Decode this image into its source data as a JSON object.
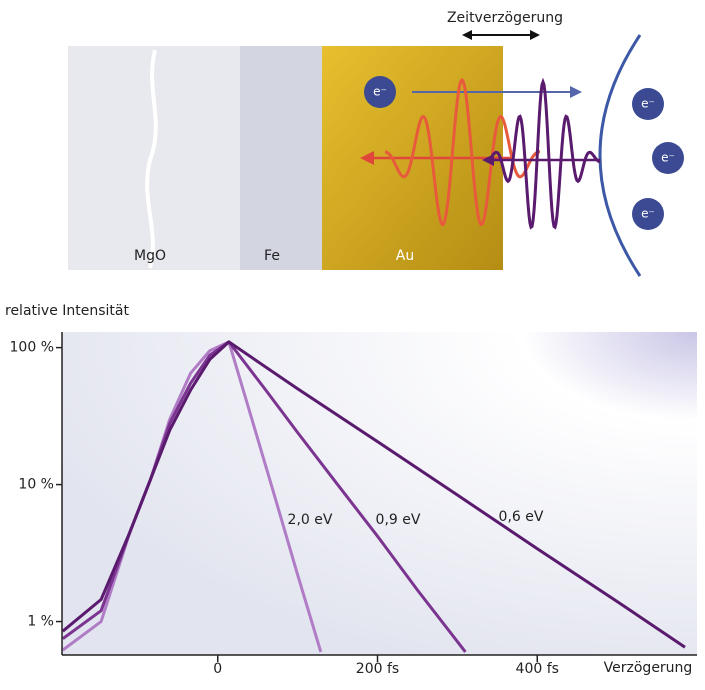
{
  "diagram": {
    "delay_label": "Zeitverzögerung",
    "layers": [
      "MgO",
      "Fe",
      "Au"
    ],
    "electron": "e⁻"
  },
  "chart_data": {
    "type": "line",
    "ylabel": "relative Intensität",
    "xlabel": "Verzögerung",
    "log_y": true,
    "xlim": [
      -195,
      600
    ],
    "ylim": [
      0.57,
      130
    ],
    "xticks": [
      0,
      {
        "value": 200,
        "label": "200 fs"
      },
      {
        "value": 400,
        "label": "400 fs"
      }
    ],
    "yticks": [
      {
        "value": 1,
        "label": "1 %"
      },
      {
        "value": 10,
        "label": "10 %"
      },
      {
        "value": 100,
        "label": "100 %"
      }
    ],
    "series": [
      {
        "name": "2,0 eV",
        "color": "#b07cc6",
        "x": [
          -194,
          -146,
          -110,
          -84,
          -60,
          -34,
          -10,
          14,
          40,
          70,
          100,
          129
        ],
        "values": [
          0.62,
          1.0,
          4.5,
          11,
          30,
          65,
          95,
          110,
          34,
          8.7,
          2.2,
          0.6
        ]
      },
      {
        "name": "0,9 eV",
        "color": "#7b3590",
        "x": [
          -194,
          -146,
          -110,
          -84,
          -60,
          -34,
          -10,
          14,
          60,
          100,
          150,
          200,
          250,
          310
        ],
        "values": [
          0.75,
          1.2,
          4.5,
          11,
          28,
          55,
          88,
          110,
          49,
          24,
          10,
          4.2,
          1.7,
          0.6
        ]
      },
      {
        "name": "0,6 eV",
        "color": "#5a1a6e",
        "x": [
          -194,
          -146,
          -110,
          -84,
          -60,
          -34,
          -10,
          14,
          100,
          200,
          300,
          400,
          500,
          585
        ],
        "values": [
          0.85,
          1.45,
          4.5,
          11,
          25,
          49,
          82,
          110,
          50,
          20.6,
          8.4,
          3.4,
          1.4,
          0.65
        ]
      }
    ]
  }
}
